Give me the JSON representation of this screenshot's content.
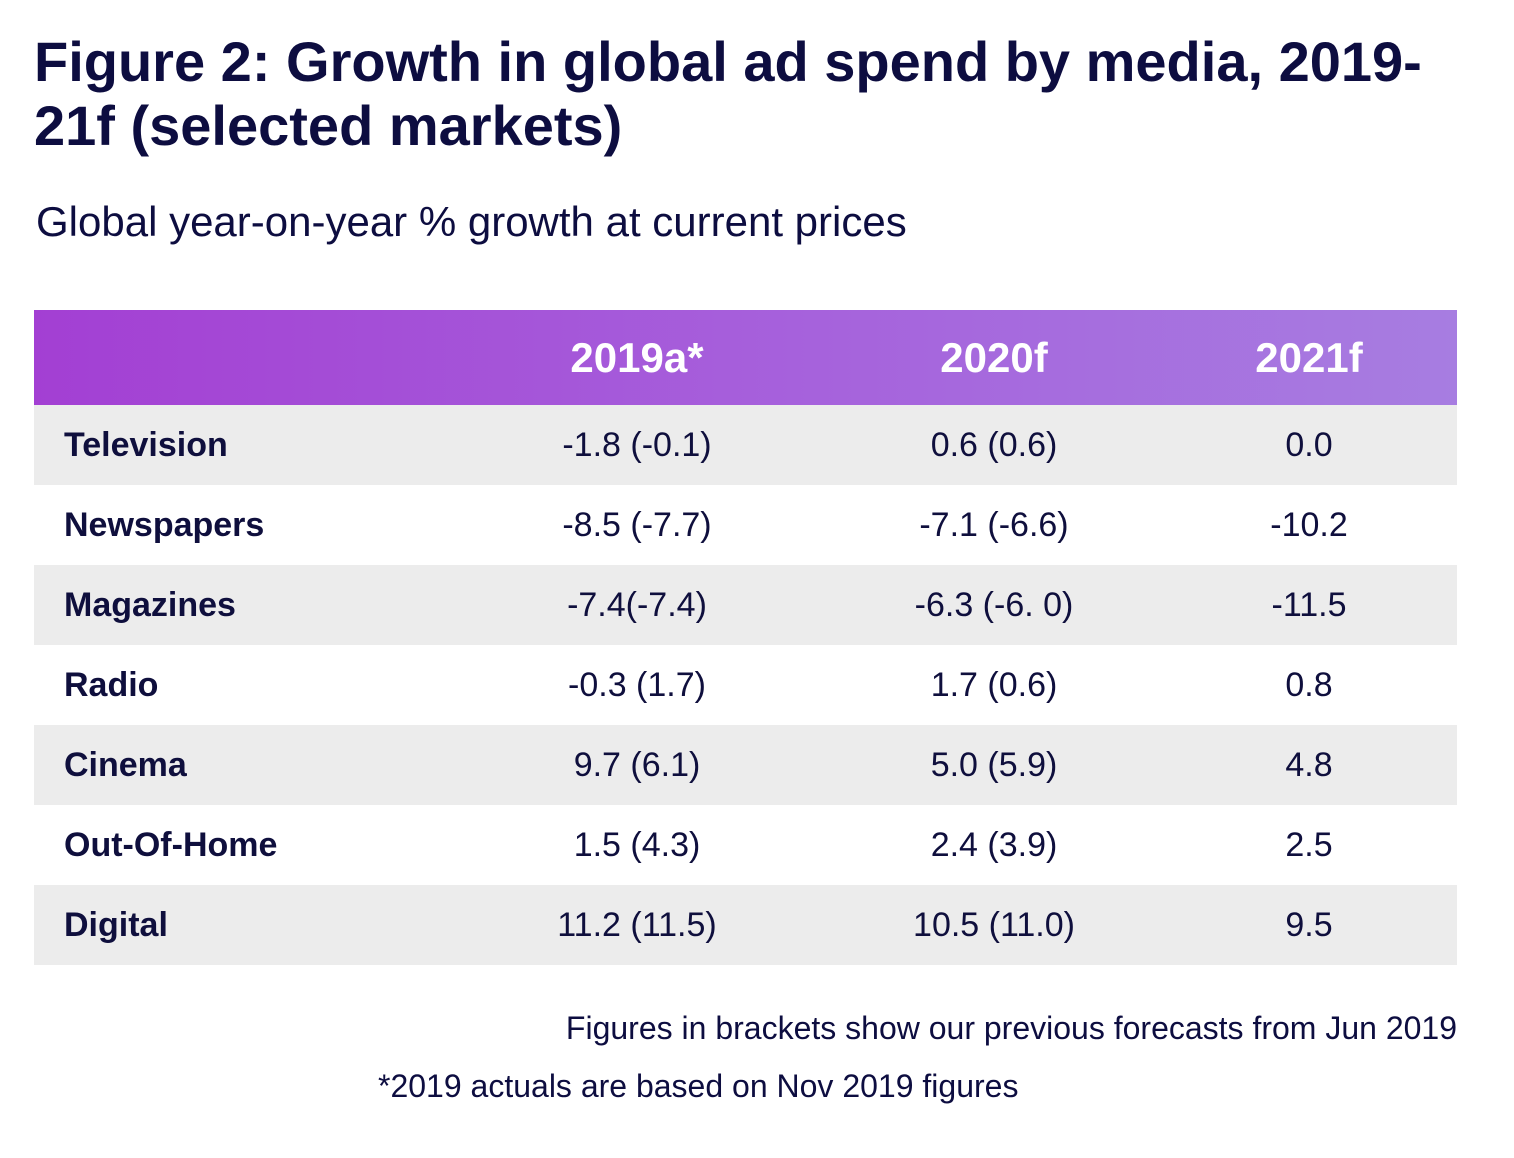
{
  "title": "Figure 2: Growth in global ad spend by media, 2019-21f (selected markets)",
  "subtitle": "Global year-on-year % growth at current prices",
  "colors": {
    "header_start": "#a33fd3",
    "header_end": "#a77de1",
    "text": "#0d0d40",
    "row_shade": "#ececec"
  },
  "chart_data": {
    "type": "table",
    "title": "Figure 2: Growth in global ad spend by media, 2019-21f (selected markets)",
    "subtitle": "Global year-on-year % growth at current prices",
    "columns": [
      "",
      "2019a*",
      "2020f",
      "2021f"
    ],
    "rows": [
      {
        "media": "Television",
        "y2019": "-1.8 (-0.1)",
        "y2020": "0.6 (0.6)",
        "y2021": "0.0"
      },
      {
        "media": "Newspapers",
        "y2019": "-8.5 (-7.7)",
        "y2020": "-7.1 (-6.6)",
        "y2021": "-10.2"
      },
      {
        "media": "Magazines",
        "y2019": "-7.4(-7.4)",
        "y2020": "-6.3 (-6. 0)",
        "y2021": "-11.5"
      },
      {
        "media": "Radio",
        "y2019": "-0.3 (1.7)",
        "y2020": "1.7 (0.6)",
        "y2021": "0.8"
      },
      {
        "media": "Cinema",
        "y2019": "9.7 (6.1)",
        "y2020": "5.0 (5.9)",
        "y2021": "4.8"
      },
      {
        "media": "Out-Of-Home",
        "y2019": "1.5 (4.3)",
        "y2020": "2.4 (3.9)",
        "y2021": "2.5"
      },
      {
        "media": "Digital",
        "y2019": "11.2 (11.5)",
        "y2020": "10.5 (11.0)",
        "y2021": "9.5"
      }
    ]
  },
  "notes": {
    "brackets": "Figures in brackets show our previous forecasts from Jun 2019",
    "actuals": "*2019 actuals are based on Nov 2019 figures"
  }
}
